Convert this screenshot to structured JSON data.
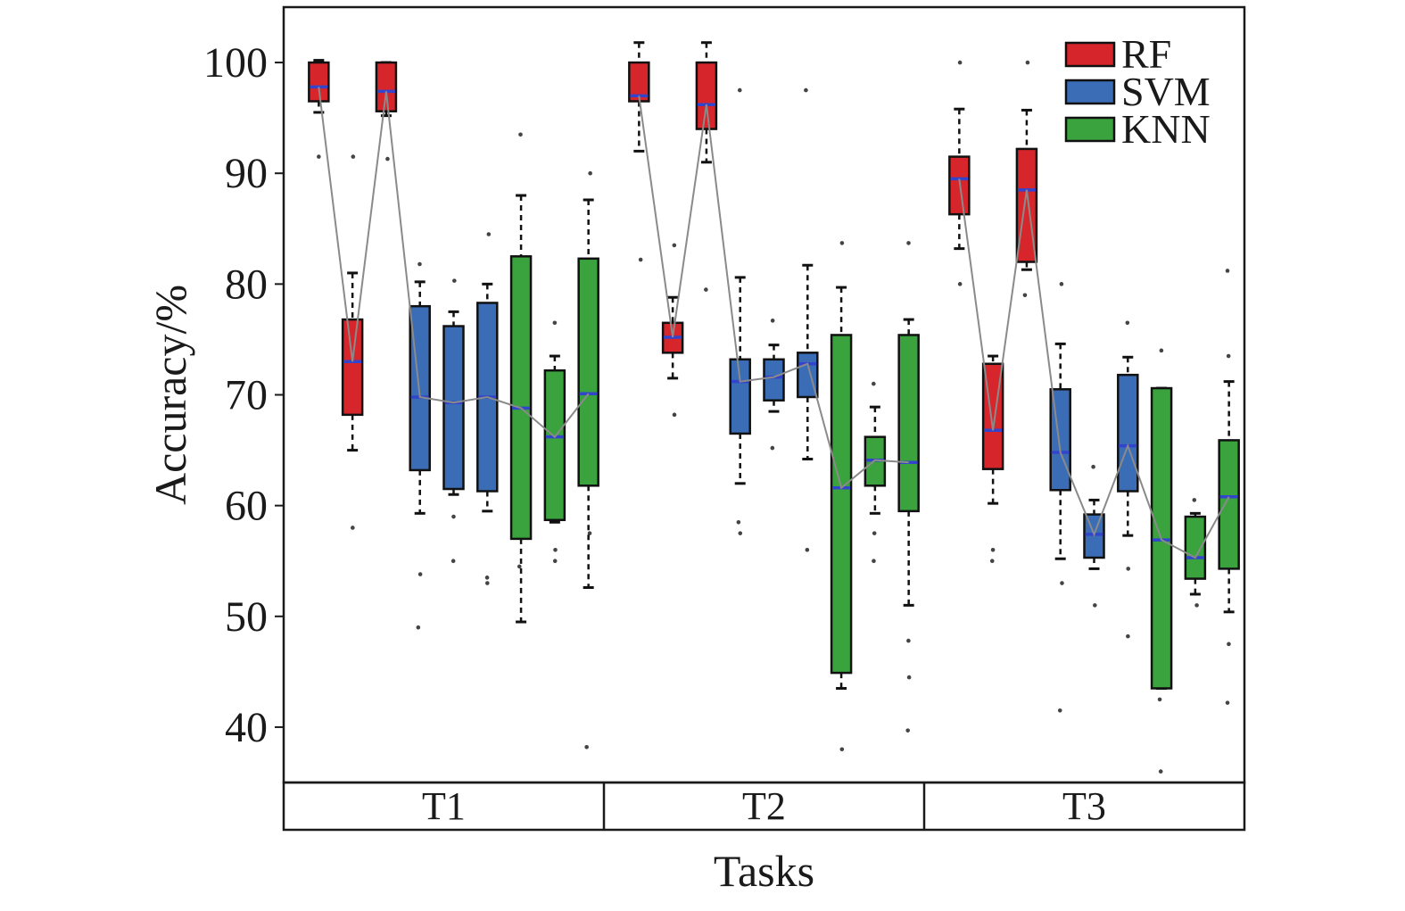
{
  "chart_data": {
    "type": "box",
    "xlabel": "Tasks",
    "ylabel": "Accuracy/%",
    "ylim": [
      35,
      105
    ],
    "yticks": [
      40,
      50,
      60,
      70,
      80,
      90,
      100
    ],
    "grid": false,
    "legend_position": "top-right",
    "categories": [
      "T1",
      "T2",
      "T3"
    ],
    "colors": {
      "RF": "#d7262b",
      "SVM": "#3a6db5",
      "KNN": "#3aa33e",
      "median": "#3344cc",
      "trend": "#8a8a8a"
    },
    "series": [
      {
        "name": "RF",
        "boxes": [
          {
            "task": "T1",
            "slot": 0,
            "whisker_low": 95.5,
            "q1": 96.5,
            "median": 97.8,
            "q3": 100,
            "whisker_high": 100.2,
            "outliers": [
              91.5
            ]
          },
          {
            "task": "T1",
            "slot": 1,
            "whisker_low": 65,
            "q1": 68.2,
            "median": 73,
            "q3": 76.8,
            "whisker_high": 81,
            "outliers": [
              58,
              91.5
            ]
          },
          {
            "task": "T1",
            "slot": 2,
            "whisker_low": 95.2,
            "q1": 95.6,
            "median": 97.4,
            "q3": 100,
            "whisker_high": 100,
            "outliers": [
              91.3
            ]
          },
          {
            "task": "T2",
            "slot": 0,
            "whisker_low": 92,
            "q1": 96.5,
            "median": 97,
            "q3": 100,
            "whisker_high": 101.8,
            "outliers": [
              82.2
            ]
          },
          {
            "task": "T2",
            "slot": 1,
            "whisker_low": 71.5,
            "q1": 73.8,
            "median": 75.2,
            "q3": 76.5,
            "whisker_high": 78.8,
            "outliers": [
              68.2,
              83.5
            ]
          },
          {
            "task": "T2",
            "slot": 2,
            "whisker_low": 91,
            "q1": 94,
            "median": 96.2,
            "q3": 100,
            "whisker_high": 101.8,
            "outliers": [
              79.5
            ]
          },
          {
            "task": "T3",
            "slot": 0,
            "whisker_low": 83.2,
            "q1": 86.3,
            "median": 89.5,
            "q3": 91.5,
            "whisker_high": 95.8,
            "outliers": [
              80,
              100
            ]
          },
          {
            "task": "T3",
            "slot": 1,
            "whisker_low": 60.2,
            "q1": 63.3,
            "median": 66.8,
            "q3": 72.8,
            "whisker_high": 73.5,
            "outliers": [
              55,
              56
            ]
          },
          {
            "task": "T3",
            "slot": 2,
            "whisker_low": 81.3,
            "q1": 82,
            "median": 88.5,
            "q3": 92.2,
            "whisker_high": 95.7,
            "outliers": [
              79,
              100
            ]
          }
        ]
      },
      {
        "name": "SVM",
        "boxes": [
          {
            "task": "T1",
            "slot": 3,
            "whisker_low": 59.3,
            "q1": 63.2,
            "median": 69.8,
            "q3": 78,
            "whisker_high": 80.2,
            "outliers": [
              49,
              53.8,
              81.8
            ]
          },
          {
            "task": "T1",
            "slot": 4,
            "whisker_low": 61,
            "q1": 61.5,
            "median": 69.3,
            "q3": 76.2,
            "whisker_high": 77.5,
            "outliers": [
              55,
              59,
              80.3
            ]
          },
          {
            "task": "T1",
            "slot": 5,
            "whisker_low": 59.5,
            "q1": 61.3,
            "median": 69.8,
            "q3": 78.3,
            "whisker_high": 80,
            "outliers": [
              53,
              53.5,
              84.5
            ]
          },
          {
            "task": "T2",
            "slot": 3,
            "whisker_low": 62,
            "q1": 66.5,
            "median": 71.2,
            "q3": 73.2,
            "whisker_high": 80.6,
            "outliers": [
              57.5,
              58.5,
              97.5
            ]
          },
          {
            "task": "T2",
            "slot": 4,
            "whisker_low": 68.5,
            "q1": 69.5,
            "median": 71.6,
            "q3": 73.2,
            "whisker_high": 74.5,
            "outliers": [
              65.2,
              76.7
            ]
          },
          {
            "task": "T2",
            "slot": 5,
            "whisker_low": 64.2,
            "q1": 69.8,
            "median": 72.8,
            "q3": 73.8,
            "whisker_high": 81.7,
            "outliers": [
              56,
              97.5
            ]
          },
          {
            "task": "T3",
            "slot": 3,
            "whisker_low": 55.2,
            "q1": 61.4,
            "median": 64.8,
            "q3": 70.5,
            "whisker_high": 74.6,
            "outliers": [
              41.5,
              53,
              80
            ]
          },
          {
            "task": "T3",
            "slot": 4,
            "whisker_low": 54.3,
            "q1": 55.3,
            "median": 57.4,
            "q3": 59.2,
            "whisker_high": 60.5,
            "outliers": [
              51,
              63.5
            ]
          },
          {
            "task": "T3",
            "slot": 5,
            "whisker_low": 57.3,
            "q1": 61.3,
            "median": 65.4,
            "q3": 71.8,
            "whisker_high": 73.4,
            "outliers": [
              48.2,
              54.3,
              76.5
            ]
          }
        ]
      },
      {
        "name": "KNN",
        "boxes": [
          {
            "task": "T1",
            "slot": 6,
            "whisker_low": 49.5,
            "q1": 57,
            "median": 68.8,
            "q3": 82.5,
            "whisker_high": 88,
            "outliers": [
              54.5,
              93.5
            ]
          },
          {
            "task": "T1",
            "slot": 7,
            "whisker_low": 58.5,
            "q1": 58.7,
            "median": 66.2,
            "q3": 72.2,
            "whisker_high": 73.5,
            "outliers": [
              55,
              56,
              76.5
            ]
          },
          {
            "task": "T1",
            "slot": 8,
            "whisker_low": 52.6,
            "q1": 61.8,
            "median": 70.1,
            "q3": 82.3,
            "whisker_high": 87.6,
            "outliers": [
              38.2,
              57.5,
              90
            ]
          },
          {
            "task": "T2",
            "slot": 6,
            "whisker_low": 43.5,
            "q1": 44.9,
            "median": 61.6,
            "q3": 75.4,
            "whisker_high": 79.7,
            "outliers": [
              38,
              83.7
            ]
          },
          {
            "task": "T2",
            "slot": 7,
            "whisker_low": 59.3,
            "q1": 61.8,
            "median": 64.1,
            "q3": 66.2,
            "whisker_high": 68.9,
            "outliers": [
              55,
              57.5,
              71
            ]
          },
          {
            "task": "T2",
            "slot": 8,
            "whisker_low": 51,
            "q1": 59.5,
            "median": 63.9,
            "q3": 75.4,
            "whisker_high": 76.8,
            "outliers": [
              39.7,
              44.5,
              47.8,
              83.7
            ]
          },
          {
            "task": "T3",
            "slot": 6,
            "whisker_low": 43.5,
            "q1": 43.5,
            "median": 56.9,
            "q3": 70.6,
            "whisker_high": 70.6,
            "outliers": [
              36,
              42.5,
              74
            ]
          },
          {
            "task": "T3",
            "slot": 7,
            "whisker_low": 52,
            "q1": 53.4,
            "median": 55.3,
            "q3": 59,
            "whisker_high": 59.3,
            "outliers": [
              51,
              60.5
            ]
          },
          {
            "task": "T3",
            "slot": 8,
            "whisker_low": 50.4,
            "q1": 54.3,
            "median": 60.8,
            "q3": 65.9,
            "whisker_high": 71.2,
            "outliers": [
              42.2,
              47.5,
              73.5,
              81.2
            ]
          }
        ]
      }
    ]
  }
}
